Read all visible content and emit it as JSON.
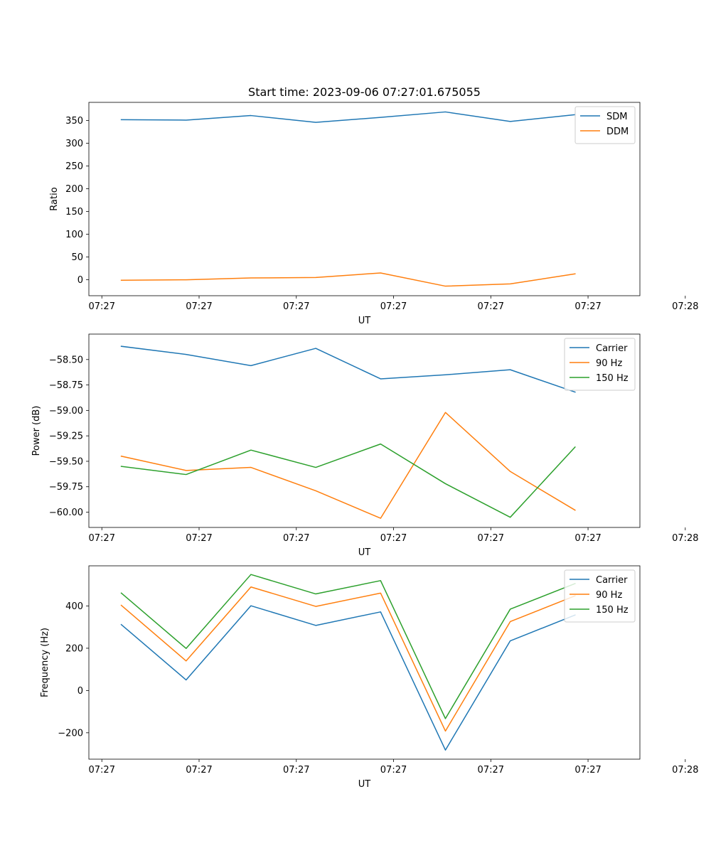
{
  "chart_data": [
    {
      "type": "line",
      "title": "Start time: 2023-09-06 07:27:01.675055",
      "xlabel": "UT",
      "ylabel": "Ratio",
      "x": [
        1,
        2,
        3,
        4,
        5,
        6,
        7,
        8
      ],
      "xlim": [
        0.5,
        9.0
      ],
      "x_ticks": [
        0.7,
        2.2,
        3.7,
        5.2,
        6.7,
        8.2,
        9.7
      ],
      "x_tick_labels": [
        "07:27",
        "07:27",
        "07:27",
        "07:27",
        "07:27",
        "07:27",
        "07:28"
      ],
      "ylim": [
        -35,
        390
      ],
      "y_ticks": [
        0,
        50,
        100,
        150,
        200,
        250,
        300,
        350
      ],
      "y_tick_labels": [
        "0",
        "50",
        "100",
        "150",
        "200",
        "250",
        "300",
        "350"
      ],
      "legend": "top-right",
      "series": [
        {
          "name": "SDM",
          "color": "#1f77b4",
          "values": [
            352,
            351,
            361,
            346,
            357,
            369,
            348,
            363
          ]
        },
        {
          "name": "DDM",
          "color": "#ff7f0e",
          "values": [
            -1,
            0,
            4,
            5,
            15,
            -14,
            -9,
            13
          ]
        }
      ]
    },
    {
      "type": "line",
      "title": "",
      "xlabel": "UT",
      "ylabel": "Power (dB)",
      "x": [
        1,
        2,
        3,
        4,
        5,
        6,
        7,
        8
      ],
      "xlim": [
        0.5,
        9.0
      ],
      "x_ticks": [
        0.7,
        2.2,
        3.7,
        5.2,
        6.7,
        8.2,
        9.7
      ],
      "x_tick_labels": [
        "07:27",
        "07:27",
        "07:27",
        "07:27",
        "07:27",
        "07:27",
        "07:28"
      ],
      "ylim": [
        -60.15,
        -58.25
      ],
      "y_ticks": [
        -60.0,
        -59.75,
        -59.5,
        -59.25,
        -59.0,
        -58.75,
        -58.5
      ],
      "y_tick_labels": [
        "−60.00",
        "−59.75",
        "−59.50",
        "−59.25",
        "−59.00",
        "−58.75",
        "−58.50"
      ],
      "legend": "top-right",
      "series": [
        {
          "name": "Carrier",
          "color": "#1f77b4",
          "values": [
            -58.37,
            -58.45,
            -58.56,
            -58.39,
            -58.69,
            -58.65,
            -58.6,
            -58.82
          ]
        },
        {
          "name": "90 Hz",
          "color": "#ff7f0e",
          "values": [
            -59.45,
            -59.59,
            -59.56,
            -59.79,
            -60.06,
            -59.02,
            -59.6,
            -59.98
          ]
        },
        {
          "name": "150 Hz",
          "color": "#2ca02c",
          "values": [
            -59.55,
            -59.63,
            -59.39,
            -59.56,
            -59.33,
            -59.72,
            -60.05,
            -59.36
          ]
        }
      ]
    },
    {
      "type": "line",
      "title": "",
      "xlabel": "UT",
      "ylabel": "Frequency (Hz)",
      "x": [
        1,
        2,
        3,
        4,
        5,
        6,
        7,
        8
      ],
      "xlim": [
        0.5,
        9.0
      ],
      "x_ticks": [
        0.7,
        2.2,
        3.7,
        5.2,
        6.7,
        8.2,
        9.7
      ],
      "x_tick_labels": [
        "07:27",
        "07:27",
        "07:27",
        "07:27",
        "07:27",
        "07:27",
        "07:28"
      ],
      "ylim": [
        -325,
        590
      ],
      "y_ticks": [
        -200,
        0,
        200,
        400
      ],
      "y_tick_labels": [
        "−200",
        "0",
        "200",
        "400"
      ],
      "legend": "top-right",
      "series": [
        {
          "name": "Carrier",
          "color": "#1f77b4",
          "values": [
            312,
            50,
            401,
            308,
            372,
            -282,
            235,
            357
          ]
        },
        {
          "name": "90 Hz",
          "color": "#ff7f0e",
          "values": [
            403,
            140,
            490,
            398,
            461,
            -192,
            326,
            448
          ]
        },
        {
          "name": "150 Hz",
          "color": "#2ca02c",
          "values": [
            461,
            199,
            549,
            457,
            520,
            -133,
            385,
            506
          ]
        }
      ]
    }
  ]
}
